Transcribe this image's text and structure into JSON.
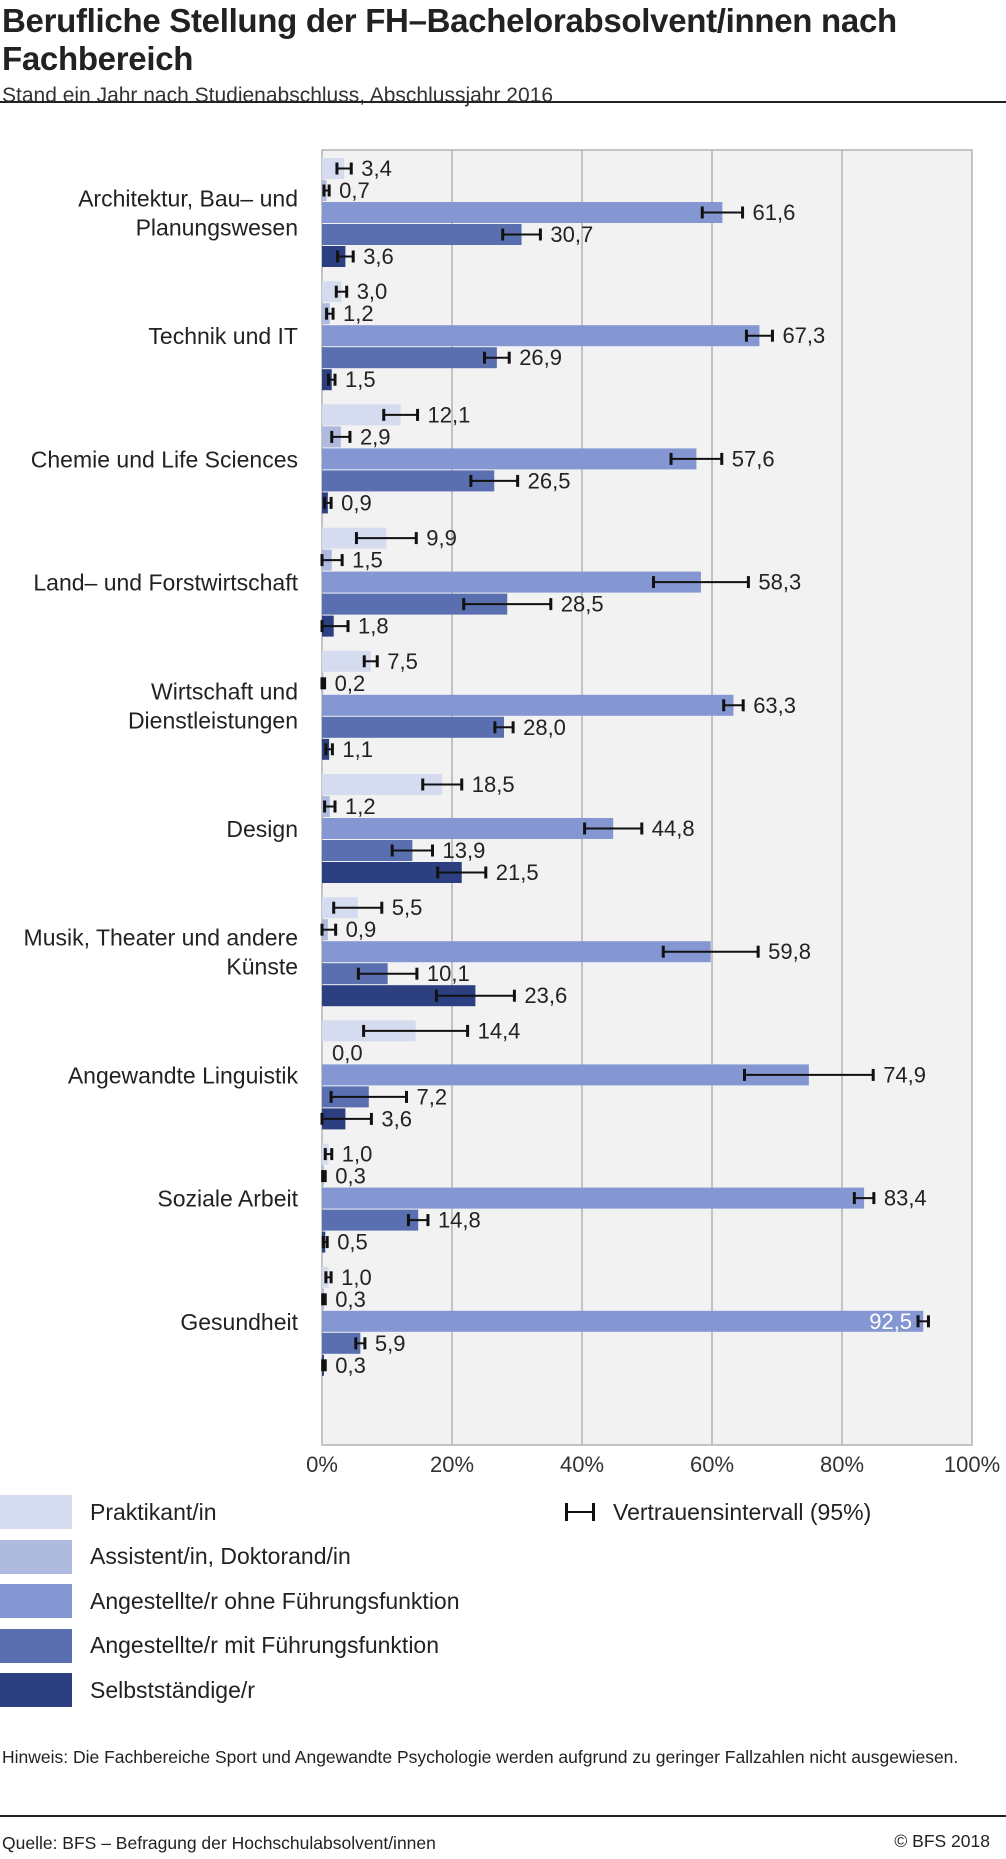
{
  "title": "Berufliche Stellung der FH–Bachelorabsolvent/innen nach Fachbereich",
  "subtitle": "Stand ein Jahr nach Studienabschluss, Abschlussjahr 2016",
  "note": "Hinweis: Die Fachbereiche Sport und Angewandte Psychologie werden aufgrund zu geringer Fallzahlen nicht ausgewiesen.",
  "source": "Quelle: BFS – Befragung der Hochschulabsolvent/innen",
  "copyright": "© BFS 2018",
  "ci_legend_label": "Vertrauensintervall (95%)",
  "chart_data": {
    "type": "bar",
    "orientation": "horizontal",
    "xlim": [
      0,
      100
    ],
    "x_ticks": [
      "0%",
      "20%",
      "40%",
      "60%",
      "80%",
      "100%"
    ],
    "grid": true,
    "legend_placement": "bottom",
    "categories": [
      [
        "Architektur, Bau– und",
        "Planungswesen"
      ],
      [
        "Technik und IT"
      ],
      [
        "Chemie und Life Sciences"
      ],
      [
        "Land– und Forstwirtschaft"
      ],
      [
        "Wirtschaft und",
        "Dienstleistungen"
      ],
      [
        "Design"
      ],
      [
        "Musik, Theater und andere",
        "Künste"
      ],
      [
        "Angewandte Linguistik"
      ],
      [
        "Soziale Arbeit"
      ],
      [
        "Gesundheit"
      ]
    ],
    "series": [
      {
        "name": "Praktikant/in",
        "color": "#d6dcf0",
        "values": [
          3.4,
          3.0,
          12.1,
          9.9,
          7.5,
          18.5,
          5.5,
          14.4,
          1.0,
          1.0
        ],
        "labels": [
          "3,4",
          "3,0",
          "12,1",
          "9,9",
          "7,5",
          "18,5",
          "5,5",
          "14,4",
          "1,0",
          "1,0"
        ],
        "ci": [
          [
            2.3,
            4.5
          ],
          [
            2.2,
            3.8
          ],
          [
            9.5,
            14.7
          ],
          [
            5.3,
            14.5
          ],
          [
            6.5,
            8.5
          ],
          [
            15.5,
            21.5
          ],
          [
            1.8,
            9.2
          ],
          [
            6.4,
            22.4
          ],
          [
            0.5,
            1.5
          ],
          [
            0.6,
            1.4
          ]
        ]
      },
      {
        "name": "Assistent/in, Doktorand/in",
        "color": "#aebade",
        "values": [
          0.7,
          1.2,
          2.9,
          1.5,
          0.2,
          1.2,
          0.9,
          0.0,
          0.3,
          0.3
        ],
        "labels": [
          "0,7",
          "1,2",
          "2,9",
          "1,5",
          "0,2",
          "1,2",
          "0,9",
          "0,0",
          "0,3",
          "0,3"
        ],
        "ci": [
          [
            0.3,
            1.1
          ],
          [
            0.7,
            1.7
          ],
          [
            1.5,
            4.3
          ],
          [
            0.0,
            3.1
          ],
          [
            0.0,
            0.4
          ],
          [
            0.4,
            2.0
          ],
          [
            0.0,
            2.1
          ],
          null,
          [
            0.1,
            0.5
          ],
          [
            0.1,
            0.5
          ]
        ]
      },
      {
        "name": "Angestellte/r ohne Führungsfunktion",
        "color": "#8597d2",
        "values": [
          61.6,
          67.3,
          57.6,
          58.3,
          63.3,
          44.8,
          59.8,
          74.9,
          83.4,
          92.5
        ],
        "labels": [
          "61,6",
          "67,3",
          "57,6",
          "58,3",
          "63,3",
          "44,8",
          "59,8",
          "74,9",
          "83,4",
          "92,5"
        ],
        "ci": [
          [
            58.5,
            64.7
          ],
          [
            65.3,
            69.3
          ],
          [
            53.7,
            61.5
          ],
          [
            51.0,
            65.6
          ],
          [
            61.8,
            64.8
          ],
          [
            40.4,
            49.2
          ],
          [
            52.5,
            67.1
          ],
          [
            65.0,
            84.8
          ],
          [
            81.9,
            84.9
          ],
          [
            91.7,
            93.3
          ]
        ]
      },
      {
        "name": "Angestellte/r mit Führungsfunktion",
        "color": "#5a6faf",
        "values": [
          30.7,
          26.9,
          26.5,
          28.5,
          28.0,
          13.9,
          10.1,
          7.2,
          14.8,
          5.9
        ],
        "labels": [
          "30,7",
          "26,9",
          "26,5",
          "28,5",
          "28,0",
          "13,9",
          "10,1",
          "7,2",
          "14,8",
          "5,9"
        ],
        "ci": [
          [
            27.8,
            33.6
          ],
          [
            25.0,
            28.8
          ],
          [
            22.9,
            30.1
          ],
          [
            21.8,
            35.2
          ],
          [
            26.6,
            29.4
          ],
          [
            10.8,
            17.0
          ],
          [
            5.6,
            14.6
          ],
          [
            1.4,
            13.0
          ],
          [
            13.3,
            16.3
          ],
          [
            5.2,
            6.6
          ]
        ]
      },
      {
        "name": "Selbstständige/r",
        "color": "#2c3f80",
        "values": [
          3.6,
          1.5,
          0.9,
          1.8,
          1.1,
          21.5,
          23.6,
          3.6,
          0.5,
          0.3
        ],
        "labels": [
          "3,6",
          "1,5",
          "0,9",
          "1,8",
          "1,1",
          "21,5",
          "23,6",
          "3,6",
          "0,5",
          "0,3"
        ],
        "ci": [
          [
            2.4,
            4.8
          ],
          [
            1.0,
            2.0
          ],
          [
            0.4,
            1.4
          ],
          [
            0.0,
            4.0
          ],
          [
            0.6,
            1.6
          ],
          [
            17.8,
            25.2
          ],
          [
            17.6,
            29.6
          ],
          [
            0.0,
            7.6
          ],
          [
            0.2,
            0.8
          ],
          [
            0.1,
            0.5
          ]
        ]
      }
    ]
  }
}
